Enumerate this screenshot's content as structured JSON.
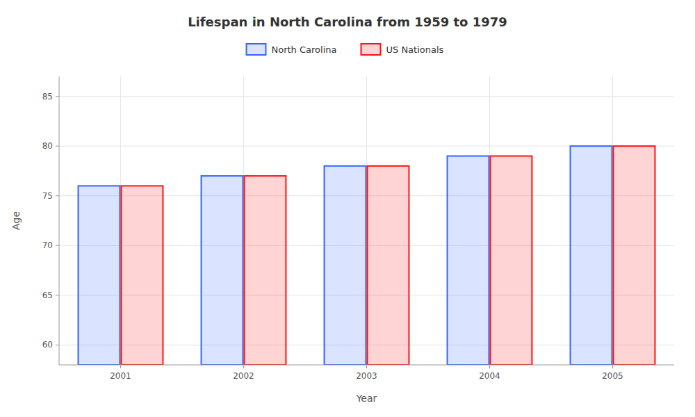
{
  "chart_data": {
    "type": "bar",
    "title": "Lifespan in North Carolina from 1959 to 1979",
    "xlabel": "Year",
    "ylabel": "Age",
    "categories": [
      "2001",
      "2002",
      "2003",
      "2004",
      "2005"
    ],
    "series": [
      {
        "name": "North Carolina",
        "color": "#3366ff",
        "values": [
          76,
          77,
          78,
          79,
          80
        ]
      },
      {
        "name": "US Nationals",
        "color": "#ff1111",
        "values": [
          76,
          77,
          78,
          79,
          80
        ]
      }
    ],
    "ylim": [
      58,
      87
    ],
    "yticks": [
      60,
      65,
      70,
      75,
      80,
      85
    ],
    "grid": true,
    "legend": "top"
  }
}
